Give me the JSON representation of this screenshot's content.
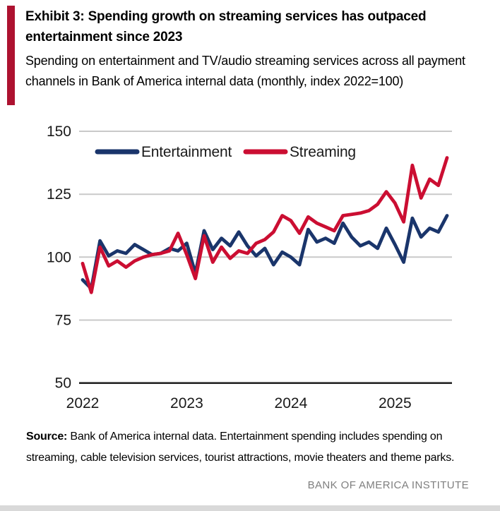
{
  "header": {
    "title": "Exhibit 3: Spending growth on streaming services has outpaced entertainment since 2023",
    "subtitle": "Spending on entertainment and TV/audio streaming services across all payment channels in Bank of America internal data (monthly, index 2022=100)"
  },
  "colors": {
    "accent_bar": "#AD1230",
    "entertainment": "#1A356B",
    "streaming": "#CB0E32",
    "gridline": "#C9C9C9",
    "axis": "#262626",
    "footer_text": "#7F7F7F"
  },
  "chart_data": {
    "type": "line",
    "title": "",
    "xlabel": "",
    "ylabel": "Index, 2022=100",
    "x_unit": "month",
    "x_start": "2022-01",
    "x_end": "2025-07",
    "x_months": [
      "2022-01",
      "2022-02",
      "2022-03",
      "2022-04",
      "2022-05",
      "2022-06",
      "2022-07",
      "2022-08",
      "2022-09",
      "2022-10",
      "2022-11",
      "2022-12",
      "2023-01",
      "2023-02",
      "2023-03",
      "2023-04",
      "2023-05",
      "2023-06",
      "2023-07",
      "2023-08",
      "2023-09",
      "2023-10",
      "2023-11",
      "2023-12",
      "2024-01",
      "2024-02",
      "2024-03",
      "2024-04",
      "2024-05",
      "2024-06",
      "2024-07",
      "2024-08",
      "2024-09",
      "2024-10",
      "2024-11",
      "2024-12",
      "2025-01",
      "2025-02",
      "2025-03",
      "2025-04",
      "2025-05",
      "2025-06",
      "2025-07"
    ],
    "x_tick_labels": [
      "2022",
      "2023",
      "2024",
      "2025"
    ],
    "x_tick_month_index": [
      0,
      12,
      24,
      36
    ],
    "y_ticks": [
      150,
      125,
      100,
      75,
      50
    ],
    "ylim": [
      50,
      150
    ],
    "grid": "horizontal",
    "legend_position": "top-left-inside",
    "series": [
      {
        "name": "Entertainment",
        "color": "#1A356B",
        "values": [
          91,
          87.5,
          106.5,
          100.5,
          102.5,
          101.5,
          105,
          103,
          101,
          101.5,
          103.5,
          102.5,
          105.5,
          93.5,
          110.5,
          103,
          107.5,
          104.5,
          110,
          104.5,
          100.5,
          103.5,
          97,
          102,
          100,
          97,
          111,
          106,
          107.5,
          105.5,
          113.5,
          108,
          104.5,
          106,
          103.5,
          111.5,
          105,
          98,
          115.5,
          108,
          111.5,
          110,
          116.5
        ]
      },
      {
        "name": "Streaming",
        "color": "#CB0E32",
        "values": [
          97.5,
          86,
          104,
          96.5,
          98.5,
          96,
          98.5,
          100,
          101,
          101.5,
          102.5,
          109.5,
          101,
          91.5,
          108.5,
          98,
          104,
          99.5,
          102.5,
          101.5,
          105.5,
          107,
          110,
          116.5,
          114.5,
          109.5,
          116,
          113.5,
          112,
          110.5,
          116.5,
          117,
          117.5,
          118.5,
          121,
          126,
          121.5,
          114,
          136.5,
          123.5,
          131,
          128.5,
          139.5
        ]
      }
    ]
  },
  "source": {
    "label": "Source:",
    "text": " Bank of America internal data. Entertainment spending includes spending on streaming, cable television services, tourist attractions, movie theaters and theme parks."
  },
  "footer": {
    "brand": "BANK OF AMERICA INSTITUTE"
  }
}
